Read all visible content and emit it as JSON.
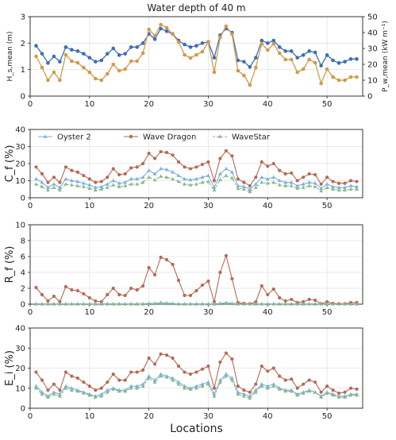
{
  "chart_data": [
    {
      "type": "line",
      "title": "Water depth of 40 m",
      "xlabel": "",
      "ylabel_left": "H_s,mean (m)",
      "ylabel_right": "P_w,mean (kW m⁻¹)",
      "xlim": [
        0,
        56
      ],
      "ylim": [
        0,
        3
      ],
      "ylim_right": [
        0,
        50
      ],
      "xticks": [
        0,
        10,
        20,
        30,
        40,
        50
      ],
      "yticks": [
        0,
        1,
        2,
        3
      ],
      "yticks_right": [
        0,
        10,
        20,
        30,
        40,
        50
      ],
      "grid": true,
      "x": [
        1,
        2,
        3,
        4,
        5,
        6,
        7,
        8,
        9,
        10,
        11,
        12,
        13,
        14,
        15,
        16,
        17,
        18,
        19,
        20,
        21,
        22,
        23,
        24,
        25,
        26,
        27,
        28,
        29,
        30,
        31,
        32,
        33,
        34,
        35,
        36,
        37,
        38,
        39,
        40,
        41,
        42,
        43,
        44,
        45,
        46,
        47,
        48,
        49,
        50,
        51,
        52,
        53,
        54,
        55
      ],
      "series": [
        {
          "axis": "left",
          "color": "#3d6db5",
          "values": [
            1.9,
            1.6,
            1.25,
            1.5,
            1.3,
            1.85,
            1.75,
            1.7,
            1.6,
            1.45,
            1.3,
            1.35,
            1.6,
            1.8,
            1.55,
            1.6,
            1.85,
            1.85,
            2.0,
            2.35,
            2.15,
            2.55,
            2.45,
            2.35,
            2.1,
            1.95,
            1.85,
            1.9,
            2.0,
            2.05,
            1.45,
            2.3,
            2.55,
            2.4,
            1.35,
            1.3,
            1.1,
            1.45,
            2.1,
            2.0,
            2.1,
            1.85,
            1.7,
            1.7,
            1.45,
            1.55,
            1.7,
            1.65,
            1.15,
            1.55,
            1.35,
            1.25,
            1.3,
            1.4,
            1.4
          ]
        },
        {
          "axis": "right",
          "color": "#d19a4a",
          "values": [
            25,
            18,
            10,
            15,
            10,
            26,
            22,
            21,
            18,
            15,
            11,
            10,
            14,
            20,
            16,
            17,
            22,
            22,
            27,
            42,
            38,
            45,
            43,
            39,
            34,
            26,
            24,
            26,
            28,
            34,
            15,
            37,
            44,
            39,
            16,
            13,
            7,
            18,
            33,
            29,
            33,
            27,
            23,
            23,
            15,
            17,
            23,
            21,
            8,
            17,
            12,
            10,
            10,
            12,
            12
          ]
        }
      ]
    },
    {
      "type": "line",
      "xlabel": "",
      "ylabel": "C_f (%)",
      "xlim": [
        0,
        56
      ],
      "ylim": [
        0,
        40
      ],
      "xticks": [
        0,
        10,
        20,
        30,
        40,
        50
      ],
      "yticks": [
        0,
        10,
        20,
        30,
        40
      ],
      "grid": true,
      "legend": "top",
      "x": [
        1,
        2,
        3,
        4,
        5,
        6,
        7,
        8,
        9,
        10,
        11,
        12,
        13,
        14,
        15,
        16,
        17,
        18,
        19,
        20,
        21,
        22,
        23,
        24,
        25,
        26,
        27,
        28,
        29,
        30,
        31,
        32,
        33,
        34,
        35,
        36,
        37,
        38,
        39,
        40,
        41,
        42,
        43,
        44,
        45,
        46,
        47,
        48,
        49,
        50,
        51,
        52,
        53,
        54,
        55
      ],
      "series": [
        {
          "name": "Oyster 2",
          "color": "#7ab0e0",
          "marker": "triangle",
          "values": [
            11,
            9,
            6,
            8,
            6,
            11,
            10,
            9.5,
            8.5,
            7.5,
            6,
            6.5,
            8,
            10,
            8.5,
            9,
            11,
            11,
            12,
            16,
            14,
            17,
            16.5,
            15,
            13,
            11,
            10.5,
            11,
            12,
            13,
            6,
            14,
            17,
            15,
            7,
            6.5,
            5,
            8,
            12,
            11,
            12,
            10,
            9,
            9,
            7,
            8,
            9,
            8.5,
            5.5,
            8,
            6.5,
            6,
            6,
            7,
            6.5
          ]
        },
        {
          "name": "Wave Dragon",
          "color": "#b56a55",
          "marker": "circle",
          "values": [
            18,
            14,
            9,
            12,
            9,
            18,
            16,
            15,
            13,
            11,
            9,
            9.5,
            12,
            17,
            13.5,
            14,
            17.5,
            18,
            20,
            26,
            23,
            27,
            26.5,
            25,
            21,
            18,
            17,
            18,
            19.5,
            21,
            10,
            23,
            27.5,
            24.5,
            11,
            9,
            7,
            12,
            21,
            18.5,
            20,
            16,
            14,
            14.5,
            10,
            12,
            14,
            13.5,
            8,
            12,
            9.5,
            8.5,
            8.5,
            10,
            9.5
          ]
        },
        {
          "name": "WaveStar",
          "color": "#8ab88a",
          "marker": "triangle",
          "values": [
            8,
            6.5,
            4.5,
            6,
            4.5,
            8,
            7.5,
            7,
            6.5,
            5.5,
            4.5,
            5,
            6,
            7.5,
            6.5,
            7,
            8,
            8,
            9,
            12,
            10.5,
            12.5,
            12,
            11,
            9.5,
            8,
            7.5,
            8,
            9,
            9.5,
            4.5,
            10.5,
            13,
            11.5,
            5.5,
            5,
            3.5,
            6,
            9,
            8.5,
            9,
            7.5,
            7,
            7,
            5.5,
            6,
            7,
            6.5,
            4,
            6,
            5,
            4.5,
            4.5,
            5,
            5
          ]
        }
      ]
    },
    {
      "type": "line",
      "xlabel": "",
      "ylabel": "R_f (%)",
      "xlim": [
        0,
        56
      ],
      "ylim": [
        0,
        10
      ],
      "xticks": [
        0,
        10,
        20,
        30,
        40,
        50
      ],
      "yticks": [
        0,
        2,
        4,
        6,
        8,
        10
      ],
      "grid": true,
      "x": [
        1,
        2,
        3,
        4,
        5,
        6,
        7,
        8,
        9,
        10,
        11,
        12,
        13,
        14,
        15,
        16,
        17,
        18,
        19,
        20,
        21,
        22,
        23,
        24,
        25,
        26,
        27,
        28,
        29,
        30,
        31,
        32,
        33,
        34,
        35,
        36,
        37,
        38,
        39,
        40,
        41,
        42,
        43,
        44,
        45,
        46,
        47,
        48,
        49,
        50,
        51,
        52,
        53,
        54,
        55
      ],
      "series": [
        {
          "name": "Oyster 2",
          "color": "#7ab0e0",
          "values": [
            0.05,
            0.05,
            0.05,
            0.05,
            0.05,
            0.05,
            0.05,
            0.05,
            0.05,
            0.05,
            0.05,
            0.05,
            0.05,
            0.05,
            0.05,
            0.05,
            0.05,
            0.05,
            0.05,
            0.1,
            0.1,
            0.2,
            0.15,
            0.1,
            0.05,
            0.05,
            0.05,
            0.05,
            0.05,
            0.05,
            0.05,
            0.1,
            0.2,
            0.1,
            0.05,
            0.05,
            0.05,
            0.05,
            0.05,
            0.05,
            0.05,
            0.05,
            0.05,
            0.05,
            0.05,
            0.05,
            0.05,
            0.05,
            0.05,
            0.05,
            0.05,
            0.05,
            0.05,
            0.05,
            0.05
          ]
        },
        {
          "name": "Wave Dragon",
          "color": "#b56a55",
          "values": [
            2.1,
            1.2,
            0.4,
            1.0,
            0.3,
            2.2,
            1.8,
            1.7,
            1.3,
            0.8,
            0.4,
            0.3,
            1.2,
            2.0,
            1.2,
            1.1,
            2.0,
            1.8,
            2.3,
            4.6,
            3.7,
            5.9,
            5.6,
            5.0,
            3.0,
            1.1,
            1.1,
            1.7,
            2.4,
            2.9,
            0.3,
            4.0,
            6.1,
            3.2,
            0.2,
            0.1,
            0.05,
            0.3,
            2.3,
            1.2,
            1.9,
            0.8,
            0.4,
            0.6,
            0.2,
            0.3,
            0.6,
            0.5,
            0.05,
            0.3,
            0.1,
            0.05,
            0.05,
            0.2,
            0.2
          ]
        },
        {
          "name": "WaveStar",
          "color": "#8ab88a",
          "values": [
            0.02,
            0.02,
            0.02,
            0.02,
            0.02,
            0.02,
            0.02,
            0.02,
            0.02,
            0.02,
            0.02,
            0.02,
            0.02,
            0.02,
            0.02,
            0.02,
            0.02,
            0.02,
            0.02,
            0.05,
            0.05,
            0.08,
            0.06,
            0.05,
            0.02,
            0.02,
            0.02,
            0.02,
            0.02,
            0.02,
            0.02,
            0.05,
            0.08,
            0.05,
            0.02,
            0.02,
            0.02,
            0.02,
            0.02,
            0.02,
            0.02,
            0.02,
            0.02,
            0.02,
            0.02,
            0.02,
            0.02,
            0.02,
            0.02,
            0.02,
            0.02,
            0.02,
            0.02,
            0.02,
            0.02
          ]
        }
      ]
    },
    {
      "type": "line",
      "xlabel": "Locations",
      "ylabel": "E_i (%)",
      "xlim": [
        0,
        56
      ],
      "ylim": [
        0,
        40
      ],
      "xticks": [
        0,
        10,
        20,
        30,
        40,
        50
      ],
      "yticks": [
        0,
        10,
        20,
        30,
        40
      ],
      "grid": true,
      "x": [
        1,
        2,
        3,
        4,
        5,
        6,
        7,
        8,
        9,
        10,
        11,
        12,
        13,
        14,
        15,
        16,
        17,
        18,
        19,
        20,
        21,
        22,
        23,
        24,
        25,
        26,
        27,
        28,
        29,
        30,
        31,
        32,
        33,
        34,
        35,
        36,
        37,
        38,
        39,
        40,
        41,
        42,
        43,
        44,
        45,
        46,
        47,
        48,
        49,
        50,
        51,
        52,
        53,
        54,
        55
      ],
      "series": [
        {
          "name": "Oyster 2",
          "color": "#7ab0e0",
          "values": [
            11,
            8,
            6,
            8,
            7,
            11,
            10,
            9,
            8,
            7,
            6,
            7,
            9,
            10,
            9,
            9,
            11,
            11,
            12,
            16,
            14,
            17,
            16,
            15,
            13,
            11,
            10,
            11,
            12,
            13,
            7,
            14,
            17,
            15,
            8,
            7,
            6,
            9,
            12,
            11,
            12,
            10,
            9,
            9,
            7,
            8,
            9,
            8,
            6,
            8,
            7,
            6,
            6,
            7,
            7
          ]
        },
        {
          "name": "Wave Dragon",
          "color": "#b56a55",
          "values": [
            18,
            14,
            9,
            12,
            9,
            18,
            16,
            15,
            13,
            11,
            9,
            10,
            13,
            17,
            14,
            14,
            18,
            18,
            19,
            25,
            22,
            27,
            26.5,
            25,
            21,
            18,
            17,
            18,
            19.5,
            21,
            10,
            23,
            27.5,
            24.5,
            11,
            9,
            8,
            12,
            21,
            18.5,
            20,
            16,
            14,
            14.5,
            10,
            12,
            14,
            13,
            8,
            11,
            9,
            7.5,
            8,
            10,
            9.5
          ]
        },
        {
          "name": "WaveStar",
          "color": "#8ab88a",
          "values": [
            10,
            7,
            5.5,
            7,
            6,
            10,
            9,
            8.5,
            7.5,
            6.5,
            5.5,
            6,
            8,
            9.5,
            8.5,
            8.5,
            10,
            10,
            11,
            15,
            13,
            16,
            15.5,
            14,
            12,
            10,
            9.5,
            10,
            11,
            12,
            6,
            13,
            16,
            14,
            7,
            6,
            5,
            8,
            11,
            10,
            11,
            9.5,
            8.5,
            8.5,
            6.5,
            7.5,
            8.5,
            8,
            5.5,
            7.5,
            6.5,
            5.5,
            5.5,
            6.5,
            6.5
          ]
        }
      ]
    }
  ]
}
